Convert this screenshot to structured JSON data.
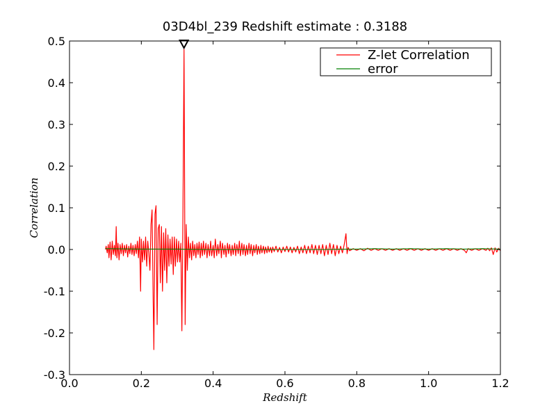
{
  "chart_data": {
    "type": "line",
    "title": "03D4bl_239 Redshift estimate : 0.3188",
    "xlabel": "Redshift",
    "ylabel": "Correlation",
    "xlim": [
      0.0,
      1.2
    ],
    "ylim": [
      -0.3,
      0.5
    ],
    "x_ticks": [
      "0.0",
      "0.2",
      "0.4",
      "0.6",
      "0.8",
      "1.0",
      "1.2"
    ],
    "y_ticks": [
      "-0.3",
      "-0.2",
      "-0.1",
      "0.0",
      "0.1",
      "0.2",
      "0.3",
      "0.4",
      "0.5"
    ],
    "grid": false,
    "legend_position": "top-right",
    "peak_marker": {
      "x": 0.3188,
      "y": 0.48,
      "shape": "triangle-down"
    },
    "series": [
      {
        "name": "Z-let Correlation",
        "color": "#ff0000",
        "points": [
          [
            0.1,
            0.0
          ],
          [
            0.102,
            0.008
          ],
          [
            0.105,
            -0.008
          ],
          [
            0.108,
            0.012
          ],
          [
            0.11,
            -0.02
          ],
          [
            0.113,
            0.018
          ],
          [
            0.116,
            -0.025
          ],
          [
            0.119,
            0.02
          ],
          [
            0.122,
            -0.012
          ],
          [
            0.125,
            0.01
          ],
          [
            0.128,
            -0.015
          ],
          [
            0.13,
            0.055
          ],
          [
            0.132,
            -0.02
          ],
          [
            0.135,
            0.015
          ],
          [
            0.138,
            -0.025
          ],
          [
            0.141,
            0.012
          ],
          [
            0.144,
            -0.01
          ],
          [
            0.147,
            0.015
          ],
          [
            0.15,
            -0.015
          ],
          [
            0.153,
            0.01
          ],
          [
            0.156,
            -0.008
          ],
          [
            0.159,
            0.012
          ],
          [
            0.162,
            -0.018
          ],
          [
            0.165,
            0.008
          ],
          [
            0.168,
            -0.01
          ],
          [
            0.171,
            0.015
          ],
          [
            0.174,
            -0.012
          ],
          [
            0.177,
            0.01
          ],
          [
            0.18,
            -0.015
          ],
          [
            0.183,
            0.012
          ],
          [
            0.186,
            -0.01
          ],
          [
            0.189,
            0.02
          ],
          [
            0.192,
            -0.02
          ],
          [
            0.195,
            0.03
          ],
          [
            0.198,
            -0.1
          ],
          [
            0.2,
            0.025
          ],
          [
            0.203,
            -0.03
          ],
          [
            0.206,
            0.02
          ],
          [
            0.209,
            -0.025
          ],
          [
            0.212,
            0.03
          ],
          [
            0.215,
            -0.04
          ],
          [
            0.218,
            0.02
          ],
          [
            0.221,
            -0.01
          ],
          [
            0.224,
            -0.05
          ],
          [
            0.227,
            0.06
          ],
          [
            0.23,
            0.095
          ],
          [
            0.233,
            -0.12
          ],
          [
            0.235,
            -0.24
          ],
          [
            0.238,
            0.085
          ],
          [
            0.241,
            0.105
          ],
          [
            0.244,
            -0.18
          ],
          [
            0.247,
            0.05
          ],
          [
            0.25,
            0.06
          ],
          [
            0.253,
            -0.08
          ],
          [
            0.256,
            0.055
          ],
          [
            0.259,
            -0.1
          ],
          [
            0.262,
            0.04
          ],
          [
            0.265,
            -0.05
          ],
          [
            0.268,
            0.05
          ],
          [
            0.271,
            -0.08
          ],
          [
            0.274,
            0.035
          ],
          [
            0.277,
            -0.04
          ],
          [
            0.28,
            0.025
          ],
          [
            0.283,
            -0.035
          ],
          [
            0.286,
            0.03
          ],
          [
            0.289,
            -0.06
          ],
          [
            0.292,
            0.03
          ],
          [
            0.295,
            -0.04
          ],
          [
            0.298,
            0.025
          ],
          [
            0.301,
            -0.03
          ],
          [
            0.304,
            0.02
          ],
          [
            0.307,
            -0.03
          ],
          [
            0.31,
            0.015
          ],
          [
            0.313,
            -0.195
          ],
          [
            0.316,
            0.1
          ],
          [
            0.319,
            0.48
          ],
          [
            0.322,
            -0.18
          ],
          [
            0.325,
            0.06
          ],
          [
            0.328,
            -0.05
          ],
          [
            0.331,
            0.03
          ],
          [
            0.334,
            -0.02
          ],
          [
            0.337,
            0.015
          ],
          [
            0.34,
            -0.025
          ],
          [
            0.343,
            0.02
          ],
          [
            0.346,
            -0.015
          ],
          [
            0.349,
            0.012
          ],
          [
            0.352,
            -0.02
          ],
          [
            0.355,
            0.015
          ],
          [
            0.358,
            -0.012
          ],
          [
            0.361,
            0.018
          ],
          [
            0.364,
            -0.02
          ],
          [
            0.367,
            0.015
          ],
          [
            0.37,
            -0.015
          ],
          [
            0.373,
            0.02
          ],
          [
            0.376,
            -0.012
          ],
          [
            0.38,
            0.015
          ],
          [
            0.383,
            -0.02
          ],
          [
            0.386,
            0.012
          ],
          [
            0.39,
            -0.015
          ],
          [
            0.393,
            0.02
          ],
          [
            0.396,
            -0.015
          ],
          [
            0.4,
            0.01
          ],
          [
            0.403,
            -0.02
          ],
          [
            0.406,
            0.025
          ],
          [
            0.41,
            -0.015
          ],
          [
            0.413,
            0.012
          ],
          [
            0.416,
            -0.01
          ],
          [
            0.42,
            0.02
          ],
          [
            0.423,
            -0.02
          ],
          [
            0.426,
            0.015
          ],
          [
            0.43,
            -0.012
          ],
          [
            0.433,
            0.01
          ],
          [
            0.436,
            -0.018
          ],
          [
            0.44,
            0.015
          ],
          [
            0.443,
            -0.01
          ],
          [
            0.446,
            0.012
          ],
          [
            0.45,
            -0.015
          ],
          [
            0.453,
            0.01
          ],
          [
            0.456,
            -0.012
          ],
          [
            0.46,
            0.015
          ],
          [
            0.463,
            -0.015
          ],
          [
            0.466,
            0.012
          ],
          [
            0.47,
            -0.01
          ],
          [
            0.473,
            0.02
          ],
          [
            0.476,
            -0.015
          ],
          [
            0.48,
            0.015
          ],
          [
            0.483,
            -0.012
          ],
          [
            0.486,
            0.012
          ],
          [
            0.49,
            -0.015
          ],
          [
            0.493,
            0.01
          ],
          [
            0.496,
            -0.012
          ],
          [
            0.5,
            0.015
          ],
          [
            0.503,
            -0.01
          ],
          [
            0.506,
            0.012
          ],
          [
            0.51,
            -0.015
          ],
          [
            0.513,
            0.01
          ],
          [
            0.516,
            -0.008
          ],
          [
            0.52,
            0.012
          ],
          [
            0.523,
            -0.012
          ],
          [
            0.526,
            0.008
          ],
          [
            0.53,
            -0.01
          ],
          [
            0.533,
            0.01
          ],
          [
            0.536,
            -0.008
          ],
          [
            0.54,
            0.008
          ],
          [
            0.543,
            -0.01
          ],
          [
            0.546,
            0.006
          ],
          [
            0.55,
            -0.008
          ],
          [
            0.553,
            0.008
          ],
          [
            0.556,
            -0.006
          ],
          [
            0.56,
            0.005
          ],
          [
            0.563,
            -0.008
          ],
          [
            0.566,
            0.006
          ],
          [
            0.57,
            -0.005
          ],
          [
            0.575,
            0.008
          ],
          [
            0.58,
            -0.006
          ],
          [
            0.585,
            0.005
          ],
          [
            0.59,
            -0.008
          ],
          [
            0.595,
            0.006
          ],
          [
            0.6,
            -0.005
          ],
          [
            0.605,
            0.008
          ],
          [
            0.61,
            -0.006
          ],
          [
            0.615,
            0.006
          ],
          [
            0.62,
            -0.008
          ],
          [
            0.625,
            0.005
          ],
          [
            0.63,
            -0.006
          ],
          [
            0.635,
            0.008
          ],
          [
            0.64,
            -0.01
          ],
          [
            0.645,
            0.006
          ],
          [
            0.65,
            -0.008
          ],
          [
            0.655,
            0.01
          ],
          [
            0.66,
            -0.01
          ],
          [
            0.665,
            0.008
          ],
          [
            0.67,
            -0.008
          ],
          [
            0.675,
            0.012
          ],
          [
            0.68,
            -0.01
          ],
          [
            0.685,
            0.01
          ],
          [
            0.69,
            -0.012
          ],
          [
            0.695,
            0.01
          ],
          [
            0.7,
            -0.01
          ],
          [
            0.705,
            0.012
          ],
          [
            0.71,
            -0.015
          ],
          [
            0.715,
            0.01
          ],
          [
            0.72,
            -0.012
          ],
          [
            0.725,
            0.015
          ],
          [
            0.73,
            -0.01
          ],
          [
            0.735,
            0.012
          ],
          [
            0.74,
            -0.015
          ],
          [
            0.745,
            0.01
          ],
          [
            0.75,
            -0.01
          ],
          [
            0.755,
            0.008
          ],
          [
            0.76,
            -0.008
          ],
          [
            0.765,
            0.012
          ],
          [
            0.77,
            0.038
          ],
          [
            0.773,
            -0.01
          ],
          [
            0.776,
            0.005
          ],
          [
            0.78,
            -0.003
          ],
          [
            0.79,
            0.002
          ],
          [
            0.8,
            -0.002
          ],
          [
            0.81,
            0.002
          ],
          [
            0.82,
            -0.003
          ],
          [
            0.83,
            0.003
          ],
          [
            0.84,
            -0.002
          ],
          [
            0.85,
            0.002
          ],
          [
            0.86,
            -0.002
          ],
          [
            0.87,
            0.002
          ],
          [
            0.88,
            -0.002
          ],
          [
            0.89,
            0.002
          ],
          [
            0.9,
            -0.002
          ],
          [
            0.91,
            0.002
          ],
          [
            0.92,
            -0.002
          ],
          [
            0.93,
            0.002
          ],
          [
            0.94,
            -0.002
          ],
          [
            0.95,
            0.002
          ],
          [
            0.96,
            -0.002
          ],
          [
            0.97,
            0.002
          ],
          [
            0.98,
            -0.002
          ],
          [
            0.99,
            0.002
          ],
          [
            1.0,
            -0.002
          ],
          [
            1.01,
            0.002
          ],
          [
            1.02,
            -0.002
          ],
          [
            1.03,
            0.002
          ],
          [
            1.04,
            -0.002
          ],
          [
            1.05,
            0.002
          ],
          [
            1.06,
            -0.002
          ],
          [
            1.07,
            0.002
          ],
          [
            1.08,
            -0.002
          ],
          [
            1.09,
            0.002
          ],
          [
            1.1,
            -0.002
          ],
          [
            1.105,
            -0.008
          ],
          [
            1.11,
            0.002
          ],
          [
            1.12,
            -0.002
          ],
          [
            1.13,
            0.002
          ],
          [
            1.14,
            -0.002
          ],
          [
            1.15,
            0.002
          ],
          [
            1.16,
            -0.002
          ],
          [
            1.165,
            0.003
          ],
          [
            1.17,
            -0.003
          ],
          [
            1.175,
            0.004
          ],
          [
            1.18,
            -0.012
          ],
          [
            1.185,
            0.004
          ],
          [
            1.19,
            -0.006
          ],
          [
            1.195,
            0.003
          ],
          [
            1.2,
            -0.003
          ]
        ]
      },
      {
        "name": "error",
        "color": "#008000",
        "points": [
          [
            0.1,
            0.002
          ],
          [
            0.2,
            0.001
          ],
          [
            0.3,
            0.001
          ],
          [
            0.4,
            0.0
          ],
          [
            0.5,
            0.0
          ],
          [
            0.6,
            0.0
          ],
          [
            0.7,
            0.0
          ],
          [
            0.78,
            0.001
          ],
          [
            0.8,
            0.001
          ],
          [
            0.85,
            0.002
          ],
          [
            0.9,
            0.001
          ],
          [
            0.95,
            0.002
          ],
          [
            1.0,
            0.001
          ],
          [
            1.05,
            0.002
          ],
          [
            1.1,
            0.001
          ],
          [
            1.15,
            0.002
          ],
          [
            1.2,
            0.001
          ]
        ]
      }
    ]
  }
}
